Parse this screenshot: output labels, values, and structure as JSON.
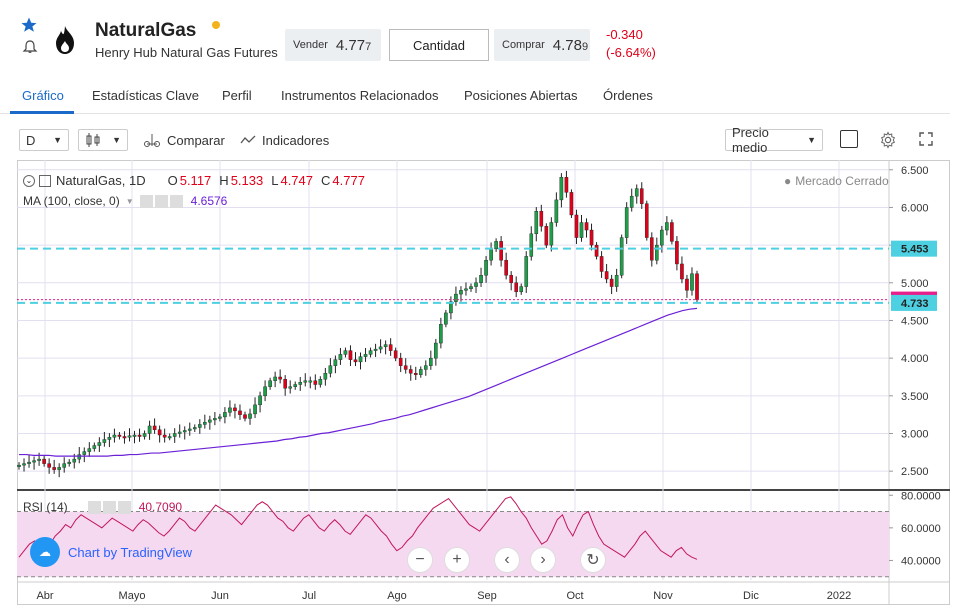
{
  "header": {
    "name": "NaturalGas",
    "subtitle": "Henry Hub Natural Gas Futures",
    "sell_label": "Vender",
    "sell_price_main": "4.77",
    "sell_price_small": "7",
    "qty_label": "Cantidad",
    "buy_label": "Comprar",
    "buy_price_main": "4.78",
    "buy_price_small": "9",
    "change_abs": "-0.340",
    "change_pct": "(-6.64%)"
  },
  "tabs": [
    "Gráfico",
    "Estadísticas Clave",
    "Perfil",
    "Instrumentos Relacionados",
    "Posiciones Abiertas",
    "Órdenes"
  ],
  "toolbar": {
    "interval": "D",
    "compare": "Comparar",
    "indicators": "Indicadores",
    "price_type": "Precio medio"
  },
  "legend": {
    "symbol": "NaturalGas, 1D",
    "o_label": "O",
    "o_val": "5.117",
    "h_label": "H",
    "h_val": "5.133",
    "l_label": "L",
    "l_val": "4.747",
    "c_label": "C",
    "c_val": "4.777",
    "ma_label": "MA (100, close, 0)",
    "ma_val": "4.6576",
    "market_status": "Mercado Cerrado",
    "rsi_label": "RSI (14)",
    "rsi_val": "40.7090",
    "tv_logo": "Chart by TradingView"
  },
  "chart_data": {
    "type": "candlestick",
    "x_labels": [
      "Abr",
      "Mayo",
      "Jun",
      "Jul",
      "Ago",
      "Sep",
      "Oct",
      "Nov",
      "Dic",
      "2022"
    ],
    "y_ticks": [
      "6.500",
      "6.000",
      "5.500",
      "5.000",
      "4.500",
      "4.000",
      "3.500",
      "3.000",
      "2.500"
    ],
    "ylim": [
      2.25,
      6.55
    ],
    "price_lines": [
      {
        "value": 5.453,
        "label": "5.453",
        "color": "#4dd0e1"
      },
      {
        "value": 4.777,
        "label": "4.777",
        "color": "#e91e8c"
      },
      {
        "value": 4.733,
        "label": "4.733",
        "color": "#4dd0e1"
      }
    ],
    "rsi_ticks": [
      "80.0000",
      "60.0000",
      "40.0000"
    ],
    "rsi_ylim": [
      28,
      82
    ],
    "rsi_bands": [
      70,
      30
    ],
    "close": [
      2.58,
      2.6,
      2.62,
      2.64,
      2.66,
      2.6,
      2.55,
      2.52,
      2.55,
      2.6,
      2.62,
      2.66,
      2.72,
      2.76,
      2.8,
      2.84,
      2.88,
      2.92,
      2.95,
      2.98,
      2.96,
      2.95,
      2.97,
      2.98,
      2.96,
      3.0,
      3.1,
      3.05,
      2.98,
      2.95,
      2.96,
      3.0,
      3.02,
      3.04,
      3.06,
      3.08,
      3.12,
      3.15,
      3.18,
      3.2,
      3.22,
      3.28,
      3.34,
      3.3,
      3.25,
      3.2,
      3.26,
      3.38,
      3.5,
      3.62,
      3.7,
      3.75,
      3.72,
      3.6,
      3.62,
      3.65,
      3.68,
      3.7,
      3.7,
      3.65,
      3.72,
      3.8,
      3.9,
      3.98,
      4.05,
      4.1,
      3.98,
      3.95,
      4.02,
      4.05,
      4.1,
      4.12,
      4.15,
      4.18,
      4.1,
      4.0,
      3.9,
      3.85,
      3.8,
      3.78,
      3.85,
      3.9,
      4.0,
      4.2,
      4.45,
      4.6,
      4.75,
      4.85,
      4.9,
      4.92,
      4.95,
      5.0,
      5.1,
      5.3,
      5.45,
      5.55,
      5.3,
      5.1,
      5.0,
      4.88,
      4.95,
      5.35,
      5.65,
      5.95,
      5.75,
      5.5,
      5.8,
      6.1,
      6.4,
      6.2,
      5.9,
      5.6,
      5.8,
      5.7,
      5.5,
      5.35,
      5.15,
      5.05,
      4.95,
      5.1,
      5.6,
      6.0,
      6.15,
      6.25,
      6.05,
      5.6,
      5.3,
      5.5,
      5.7,
      5.8,
      5.55,
      5.25,
      5.05,
      4.9,
      5.12,
      4.777
    ],
    "ma": [
      2.72,
      2.72,
      2.71,
      2.71,
      2.71,
      2.7,
      2.7,
      2.7,
      2.7,
      2.7,
      2.7,
      2.7,
      2.7,
      2.71,
      2.71,
      2.72,
      2.72,
      2.73,
      2.74,
      2.74,
      2.75,
      2.76,
      2.77,
      2.78,
      2.79,
      2.8,
      2.81,
      2.82,
      2.83,
      2.84,
      2.85,
      2.86,
      2.87,
      2.88,
      2.89,
      2.9,
      2.92,
      2.93,
      2.95,
      2.96,
      2.98,
      3.0,
      3.01,
      3.03,
      3.05,
      3.07,
      3.09,
      3.11,
      3.13,
      3.16,
      3.18,
      3.2,
      3.23,
      3.25,
      3.28,
      3.31,
      3.34,
      3.37,
      3.4,
      3.43,
      3.46,
      3.49,
      3.53,
      3.57,
      3.61,
      3.65,
      3.69,
      3.73,
      3.77,
      3.81,
      3.85,
      3.89,
      3.93,
      3.97,
      4.01,
      4.05,
      4.09,
      4.13,
      4.17,
      4.21,
      4.25,
      4.29,
      4.33,
      4.37,
      4.41,
      4.45,
      4.49,
      4.53,
      4.57,
      4.6,
      4.63,
      4.65,
      4.66
    ],
    "rsi": [
      42,
      46,
      50,
      52,
      48,
      45,
      50,
      55,
      58,
      62,
      60,
      65,
      68,
      66,
      64,
      62,
      60,
      63,
      66,
      64,
      62,
      60,
      58,
      62,
      65,
      63,
      60,
      57,
      55,
      58,
      62,
      66,
      64,
      60,
      58,
      62,
      66,
      70,
      74,
      72,
      70,
      68,
      65,
      62,
      66,
      70,
      74,
      76,
      74,
      70,
      66,
      64,
      60,
      58,
      62,
      66,
      68,
      64,
      60,
      58,
      62,
      65,
      62,
      58,
      56,
      60,
      64,
      68,
      66,
      62,
      58,
      55,
      50,
      46,
      48,
      52,
      55,
      60,
      64,
      68,
      72,
      74,
      76,
      78,
      74,
      70,
      66,
      62,
      60,
      58,
      62,
      66,
      70,
      74,
      78,
      79,
      75,
      70,
      66,
      60,
      55,
      50,
      52,
      58,
      65,
      68,
      60,
      55,
      62,
      68,
      70,
      62,
      55,
      50,
      48,
      46,
      44,
      42,
      46,
      50,
      55,
      58,
      54,
      50,
      46,
      44,
      42,
      46,
      48,
      44,
      42,
      40.7
    ]
  }
}
